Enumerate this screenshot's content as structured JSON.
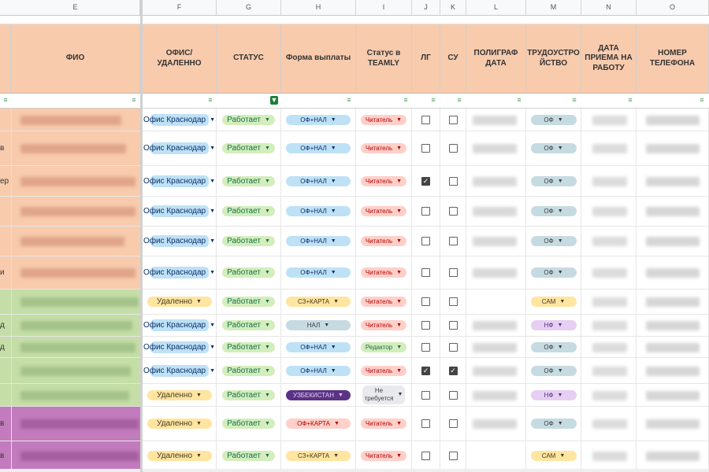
{
  "columns": [
    "E",
    "F",
    "G",
    "H",
    "I",
    "J",
    "K",
    "L",
    "M",
    "N",
    "O"
  ],
  "headers": {
    "fio": "ФИО",
    "office": "ОФИС/ УДАЛЕННО",
    "status": "СТАТУС",
    "pay": "Форма выплаты",
    "teamly": "Статус в TEAMLY",
    "lg": "ЛГ",
    "su": "СУ",
    "poly": "ПОЛИГРАФ ДАТА",
    "emp": "ТРУДОУСТРО ЙСТВО",
    "hire": "ДАТА ПРИЕМА НА РАБОТУ",
    "phone": "НОМЕР ТЕЛЕФОНА"
  },
  "rows": [
    {
      "edge": "",
      "office": "Офис Краснодар",
      "status": "Работает",
      "pay": "ОФ+НАЛ",
      "teamly": "Читатель",
      "lg": false,
      "su": false,
      "emp": "ОФ"
    },
    {
      "edge": "в",
      "office": "Офис Краснодар",
      "status": "Работает",
      "pay": "ОФ+НАЛ",
      "teamly": "Читатель",
      "lg": false,
      "su": false,
      "emp": "ОФ"
    },
    {
      "edge": "ер",
      "office": "Офис Краснодар",
      "status": "Работает",
      "pay": "ОФ+НАЛ",
      "teamly": "Читатель",
      "lg": true,
      "su": false,
      "emp": "ОФ"
    },
    {
      "edge": "",
      "office": "Офис Краснодар",
      "status": "Работает",
      "pay": "ОФ+НАЛ",
      "teamly": "Читатель",
      "lg": false,
      "su": false,
      "emp": "ОФ"
    },
    {
      "edge": "",
      "office": "Офис Краснодар",
      "status": "Работает",
      "pay": "ОФ+НАЛ",
      "teamly": "Читатель",
      "lg": false,
      "su": false,
      "emp": "ОФ"
    },
    {
      "edge": "и",
      "office": "Офис Краснодар",
      "status": "Работает",
      "pay": "ОФ+НАЛ",
      "teamly": "Читатель",
      "lg": false,
      "su": false,
      "emp": "ОФ"
    },
    {
      "edge": "",
      "office": "Удаленно",
      "status": "Работает",
      "pay": "СЗ+КАРТА",
      "teamly": "Читатель",
      "lg": false,
      "su": false,
      "emp": "САМ"
    },
    {
      "edge": "д",
      "office": "Офис Краснодар",
      "status": "Работает",
      "pay": "НАЛ",
      "teamly": "Читатель",
      "lg": false,
      "su": false,
      "emp": "НФ"
    },
    {
      "edge": "д",
      "office": "Офис Краснодар",
      "status": "Работает",
      "pay": "ОФ+НАЛ",
      "teamly": "Редактор",
      "lg": false,
      "su": false,
      "emp": "ОФ"
    },
    {
      "edge": "",
      "office": "Офис Краснодар",
      "status": "Работает",
      "pay": "ОФ+НАЛ",
      "teamly": "Читатель",
      "lg": true,
      "su": true,
      "emp": "ОФ"
    },
    {
      "edge": "",
      "office": "Удаленно",
      "status": "Работает",
      "pay": "УЗБЕКИСТАН",
      "teamly": "Не требуется",
      "lg": false,
      "su": false,
      "emp": "НФ"
    },
    {
      "edge": "в",
      "office": "Удаленно",
      "status": "Работает",
      "pay": "ОФ+КАРТА",
      "teamly": "Читатель",
      "lg": false,
      "su": false,
      "emp": "ОФ"
    },
    {
      "edge": "в",
      "office": "Удаленно",
      "status": "Работает",
      "pay": "СЗ+КАРТА",
      "teamly": "Читатель",
      "lg": false,
      "su": false,
      "emp": "САМ"
    }
  ],
  "colors": {
    "peach": "#f8cbad",
    "green": "#c5dea8",
    "magenta": "#c27bbd",
    "filter_active": "#188038"
  }
}
